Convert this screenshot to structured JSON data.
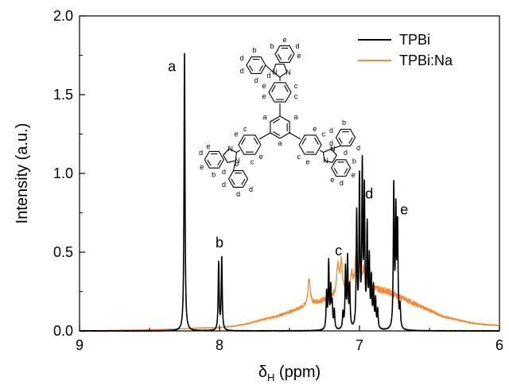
{
  "chart_data": {
    "type": "line",
    "xlabel_main": "δ",
    "xlabel_sub": "H",
    "xlabel_rest": " (ppm)",
    "ylabel": "Intensity (a.u.)",
    "xlim": [
      9,
      6
    ],
    "ylim": [
      0,
      2.0
    ],
    "x_reversed": true,
    "x_ticks": [
      9,
      8,
      7,
      6
    ],
    "y_ticks": [
      0.0,
      0.5,
      1.0,
      1.5,
      2.0
    ],
    "x_tick_labels": [
      "9",
      "8",
      "7",
      "6"
    ],
    "y_tick_labels": [
      "0.0",
      "0.5",
      "1.0",
      "1.5",
      "2.0"
    ],
    "legend_position": "top-right",
    "series": [
      {
        "name": "TPBi",
        "color": "#000000",
        "peaks": [
          {
            "x": 8.25,
            "h": 1.76,
            "w": 0.004
          },
          {
            "x": 8.006,
            "h": 0.43,
            "w": 0.004
          },
          {
            "x": 7.984,
            "h": 0.46,
            "w": 0.004
          },
          {
            "x": 7.235,
            "h": 0.23,
            "w": 0.004
          },
          {
            "x": 7.22,
            "h": 0.42,
            "w": 0.004
          },
          {
            "x": 7.205,
            "h": 0.25,
            "w": 0.004
          },
          {
            "x": 7.195,
            "h": 0.15,
            "w": 0.004
          },
          {
            "x": 7.18,
            "h": 0.12,
            "w": 0.004
          },
          {
            "x": 7.118,
            "h": 0.1,
            "w": 0.004
          },
          {
            "x": 7.1,
            "h": 0.38,
            "w": 0.004
          },
          {
            "x": 7.085,
            "h": 0.44,
            "w": 0.004
          },
          {
            "x": 7.07,
            "h": 0.26,
            "w": 0.004
          },
          {
            "x": 7.02,
            "h": 0.72,
            "w": 0.004
          },
          {
            "x": 7.0,
            "h": 0.93,
            "w": 0.004
          },
          {
            "x": 6.98,
            "h": 1.0,
            "w": 0.004
          },
          {
            "x": 6.965,
            "h": 0.84,
            "w": 0.004
          },
          {
            "x": 6.945,
            "h": 0.62,
            "w": 0.004
          },
          {
            "x": 6.93,
            "h": 0.42,
            "w": 0.004
          },
          {
            "x": 6.915,
            "h": 0.3,
            "w": 0.004
          },
          {
            "x": 6.9,
            "h": 0.25,
            "w": 0.004
          },
          {
            "x": 6.885,
            "h": 0.18,
            "w": 0.004
          },
          {
            "x": 6.87,
            "h": 0.12,
            "w": 0.004
          },
          {
            "x": 6.755,
            "h": 0.89,
            "w": 0.004
          },
          {
            "x": 6.74,
            "h": 0.71,
            "w": 0.004
          },
          {
            "x": 6.728,
            "h": 0.64,
            "w": 0.004
          },
          {
            "x": 6.71,
            "h": 0.14,
            "w": 0.004
          }
        ],
        "baseline": 0.0
      },
      {
        "name": "TPBi:Na",
        "color": "#f28c38",
        "envelope": [
          [
            9.0,
            0.0
          ],
          [
            8.6,
            0.005
          ],
          [
            8.3,
            0.012
          ],
          [
            8.1,
            0.02
          ],
          [
            8.0,
            0.02
          ],
          [
            7.9,
            0.03
          ],
          [
            7.8,
            0.045
          ],
          [
            7.7,
            0.07
          ],
          [
            7.6,
            0.09
          ],
          [
            7.5,
            0.12
          ],
          [
            7.4,
            0.15
          ],
          [
            7.3,
            0.18
          ],
          [
            7.2,
            0.21
          ],
          [
            7.1,
            0.24
          ],
          [
            7.0,
            0.28
          ],
          [
            6.9,
            0.27
          ],
          [
            6.8,
            0.25
          ],
          [
            6.7,
            0.21
          ],
          [
            6.6,
            0.17
          ],
          [
            6.5,
            0.13
          ],
          [
            6.4,
            0.09
          ],
          [
            6.3,
            0.07
          ],
          [
            6.2,
            0.05
          ],
          [
            6.1,
            0.04
          ],
          [
            6.0,
            0.035
          ]
        ],
        "peaks": [
          {
            "x": 7.36,
            "h": 0.17,
            "w": 0.01
          },
          {
            "x": 7.155,
            "h": 0.18,
            "w": 0.01
          },
          {
            "x": 7.13,
            "h": 0.2,
            "w": 0.01
          },
          {
            "x": 7.055,
            "h": 0.1,
            "w": 0.008
          },
          {
            "x": 7.025,
            "h": 0.2,
            "w": 0.008
          },
          {
            "x": 7.0,
            "h": 0.15,
            "w": 0.008
          },
          {
            "x": 6.97,
            "h": 0.12,
            "w": 0.008
          },
          {
            "x": 6.93,
            "h": 0.09,
            "w": 0.008
          }
        ]
      }
    ],
    "annotations": [
      {
        "label": "a",
        "x": 8.34,
        "y": 1.65
      },
      {
        "label": "b",
        "x": 8.0,
        "y": 0.53
      },
      {
        "label": "c",
        "x": 7.15,
        "y": 0.48
      },
      {
        "label": "d",
        "x": 6.93,
        "y": 0.84
      },
      {
        "label": "e",
        "x": 6.68,
        "y": 0.74
      }
    ]
  },
  "molecule": {
    "title": "",
    "atom_labels": {
      "a": "a",
      "b": "b",
      "c": "c",
      "d": "d",
      "e": "e",
      "n": "N"
    }
  }
}
